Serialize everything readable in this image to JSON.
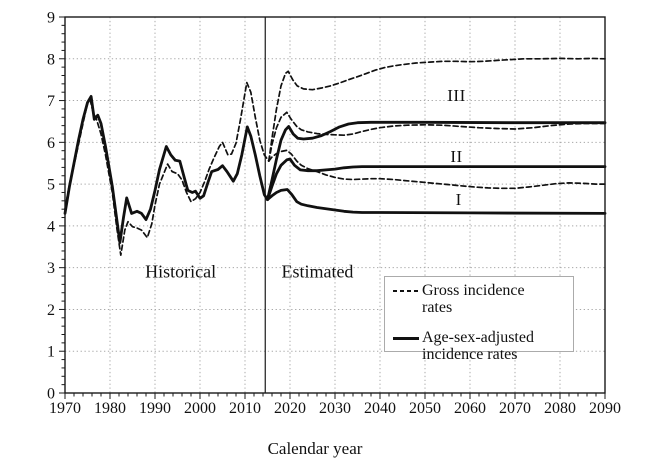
{
  "colors": {
    "line": "#111111",
    "grid": "#a8a8a8",
    "frame": "#1a1a1a",
    "background": "#ffffff",
    "legend_border": "#ababab"
  },
  "annotations": {
    "divider_year": 2014.5,
    "region_labels": [
      {
        "text": "Historical",
        "year": 1995.7,
        "value": 2.9
      },
      {
        "text": "Estimated",
        "year": 2026.1,
        "value": 2.9
      }
    ],
    "scenarios": [
      {
        "text": "I",
        "year": 2057.5,
        "value": 4.62
      },
      {
        "text": "II",
        "year": 2057.0,
        "value": 5.66
      },
      {
        "text": "III",
        "year": 2057.0,
        "value": 7.12
      }
    ]
  },
  "legend": {
    "items": [
      {
        "style": "dashed",
        "label": "Gross incidence rates"
      },
      {
        "style": "solid",
        "label": "Age-sex-adjusted incidence rates"
      }
    ]
  },
  "chart_data": {
    "type": "line",
    "title": "",
    "xlabel": "Calendar year",
    "ylabel": "",
    "xlim": [
      1970,
      2090
    ],
    "ylim": [
      0,
      9
    ],
    "x_major_step": 10,
    "x_minor_step": 2,
    "y_major_step": 1,
    "y_minor_step": 0.2,
    "grid": "dotted",
    "x_ticks": [
      "1970",
      "1980",
      "1990",
      "2000",
      "2010",
      "2020",
      "2030",
      "2040",
      "2050",
      "2060",
      "2070",
      "2080",
      "2090"
    ],
    "y_ticks": [
      "0",
      "1",
      "2",
      "3",
      "4",
      "5",
      "6",
      "7",
      "8",
      "9"
    ],
    "series": [
      {
        "id": "gross-historical",
        "name": "Gross incidence rates (historical)",
        "style": "dashed",
        "points": [
          [
            1970,
            4.4
          ],
          [
            1971,
            5.0
          ],
          [
            1972,
            5.45
          ],
          [
            1973,
            5.95
          ],
          [
            1974,
            6.45
          ],
          [
            1975,
            6.95
          ],
          [
            1975.5,
            7.05
          ],
          [
            1976.3,
            6.7
          ],
          [
            1977,
            6.55
          ],
          [
            1978,
            6.2
          ],
          [
            1979,
            5.7
          ],
          [
            1980.5,
            4.8
          ],
          [
            1981.5,
            3.95
          ],
          [
            1982.4,
            3.3
          ],
          [
            1983.3,
            3.9
          ],
          [
            1984,
            4.1
          ],
          [
            1985,
            3.98
          ],
          [
            1986,
            3.95
          ],
          [
            1987,
            3.9
          ],
          [
            1988.3,
            3.72
          ],
          [
            1989.3,
            4.05
          ],
          [
            1990,
            4.5
          ],
          [
            1991,
            5.0
          ],
          [
            1992.8,
            5.48
          ],
          [
            1993.8,
            5.3
          ],
          [
            1995,
            5.25
          ],
          [
            1996,
            5.1
          ],
          [
            1997,
            4.8
          ],
          [
            1998,
            4.58
          ],
          [
            1999,
            4.65
          ],
          [
            2000,
            4.8
          ],
          [
            2001,
            5.05
          ],
          [
            2002,
            5.35
          ],
          [
            2003,
            5.6
          ],
          [
            2004.3,
            5.9
          ],
          [
            2005,
            6.0
          ],
          [
            2006.2,
            5.7
          ],
          [
            2007,
            5.72
          ],
          [
            2008,
            5.98
          ],
          [
            2009,
            6.55
          ],
          [
            2010.4,
            7.43
          ],
          [
            2011.3,
            7.2
          ],
          [
            2012.3,
            6.6
          ],
          [
            2013.3,
            6.05
          ],
          [
            2014.3,
            5.7
          ],
          [
            2015.3,
            5.55
          ]
        ]
      },
      {
        "id": "gross-III",
        "name": "Gross incidence rates III",
        "style": "dashed",
        "points": [
          [
            2015.3,
            5.55
          ],
          [
            2016,
            6.1
          ],
          [
            2017,
            6.8
          ],
          [
            2018,
            7.35
          ],
          [
            2019,
            7.65
          ],
          [
            2019.6,
            7.7
          ],
          [
            2020.6,
            7.5
          ],
          [
            2021.6,
            7.35
          ],
          [
            2023,
            7.28
          ],
          [
            2025,
            7.26
          ],
          [
            2027,
            7.3
          ],
          [
            2029,
            7.35
          ],
          [
            2031,
            7.42
          ],
          [
            2033,
            7.5
          ],
          [
            2035,
            7.57
          ],
          [
            2037,
            7.65
          ],
          [
            2039,
            7.73
          ],
          [
            2041,
            7.79
          ],
          [
            2043,
            7.83
          ],
          [
            2045,
            7.86
          ],
          [
            2048,
            7.9
          ],
          [
            2051,
            7.92
          ],
          [
            2054,
            7.94
          ],
          [
            2057,
            7.94
          ],
          [
            2060,
            7.93
          ],
          [
            2063,
            7.94
          ],
          [
            2066,
            7.96
          ],
          [
            2069,
            7.98
          ],
          [
            2072,
            8.0
          ],
          [
            2076,
            8.0
          ],
          [
            2080,
            8.01
          ],
          [
            2084,
            8.0
          ],
          [
            2087,
            8.01
          ],
          [
            2090,
            8.0
          ]
        ]
      },
      {
        "id": "gross-II",
        "name": "Gross incidence rates II",
        "style": "dashed",
        "points": [
          [
            2015.3,
            5.55
          ],
          [
            2016,
            5.95
          ],
          [
            2017,
            6.35
          ],
          [
            2018,
            6.6
          ],
          [
            2019.3,
            6.72
          ],
          [
            2020.3,
            6.55
          ],
          [
            2021.5,
            6.38
          ],
          [
            2022.5,
            6.3
          ],
          [
            2024,
            6.25
          ],
          [
            2026,
            6.21
          ],
          [
            2028,
            6.19
          ],
          [
            2030,
            6.18
          ],
          [
            2032,
            6.17
          ],
          [
            2034,
            6.2
          ],
          [
            2036,
            6.26
          ],
          [
            2038,
            6.31
          ],
          [
            2040,
            6.35
          ],
          [
            2043,
            6.39
          ],
          [
            2046,
            6.41
          ],
          [
            2050,
            6.42
          ],
          [
            2054,
            6.41
          ],
          [
            2058,
            6.38
          ],
          [
            2062,
            6.35
          ],
          [
            2066,
            6.33
          ],
          [
            2070,
            6.32
          ],
          [
            2074,
            6.35
          ],
          [
            2078,
            6.4
          ],
          [
            2082,
            6.44
          ],
          [
            2086,
            6.45
          ],
          [
            2090,
            6.45
          ]
        ]
      },
      {
        "id": "gross-I",
        "name": "Gross incidence rates I",
        "style": "dashed",
        "points": [
          [
            2015.3,
            5.55
          ],
          [
            2016,
            5.65
          ],
          [
            2017,
            5.73
          ],
          [
            2018,
            5.78
          ],
          [
            2019.3,
            5.81
          ],
          [
            2020.3,
            5.72
          ],
          [
            2021.5,
            5.55
          ],
          [
            2022.5,
            5.45
          ],
          [
            2024,
            5.37
          ],
          [
            2026,
            5.3
          ],
          [
            2028,
            5.22
          ],
          [
            2030,
            5.16
          ],
          [
            2032,
            5.12
          ],
          [
            2034,
            5.11
          ],
          [
            2036,
            5.12
          ],
          [
            2038,
            5.13
          ],
          [
            2040,
            5.13
          ],
          [
            2043,
            5.11
          ],
          [
            2046,
            5.08
          ],
          [
            2049,
            5.05
          ],
          [
            2052,
            5.02
          ],
          [
            2055,
            4.99
          ],
          [
            2058,
            4.96
          ],
          [
            2061,
            4.93
          ],
          [
            2064,
            4.91
          ],
          [
            2067,
            4.9
          ],
          [
            2070,
            4.9
          ],
          [
            2073,
            4.93
          ],
          [
            2076,
            4.97
          ],
          [
            2079,
            5.01
          ],
          [
            2082,
            5.03
          ],
          [
            2085,
            5.02
          ],
          [
            2088,
            5.0
          ],
          [
            2090,
            5.0
          ]
        ]
      },
      {
        "id": "adjusted-historical",
        "name": "Age-sex-adjusted incidence rates (historical)",
        "style": "solid",
        "points": [
          [
            1970,
            4.3
          ],
          [
            1971,
            4.95
          ],
          [
            1972,
            5.5
          ],
          [
            1973,
            6.05
          ],
          [
            1974,
            6.55
          ],
          [
            1975,
            6.95
          ],
          [
            1975.8,
            7.1
          ],
          [
            1976.5,
            6.55
          ],
          [
            1977.3,
            6.65
          ],
          [
            1978,
            6.45
          ],
          [
            1979,
            5.9
          ],
          [
            1980.5,
            4.95
          ],
          [
            1981.5,
            4.15
          ],
          [
            1982.2,
            3.6
          ],
          [
            1983,
            4.2
          ],
          [
            1983.7,
            4.67
          ],
          [
            1984.8,
            4.3
          ],
          [
            1986,
            4.35
          ],
          [
            1987,
            4.3
          ],
          [
            1988,
            4.15
          ],
          [
            1989,
            4.4
          ],
          [
            1990,
            4.85
          ],
          [
            1991,
            5.35
          ],
          [
            1992.5,
            5.9
          ],
          [
            1993.5,
            5.7
          ],
          [
            1994.5,
            5.57
          ],
          [
            1995.5,
            5.55
          ],
          [
            1996.5,
            5.15
          ],
          [
            1997.3,
            4.85
          ],
          [
            1998.3,
            4.8
          ],
          [
            1999,
            4.83
          ],
          [
            2000,
            4.66
          ],
          [
            2000.8,
            4.72
          ],
          [
            2001.8,
            5.05
          ],
          [
            2002.6,
            5.3
          ],
          [
            2004,
            5.35
          ],
          [
            2005,
            5.44
          ],
          [
            2006,
            5.3
          ],
          [
            2007.4,
            5.07
          ],
          [
            2008.3,
            5.25
          ],
          [
            2009.3,
            5.7
          ],
          [
            2010.5,
            6.37
          ],
          [
            2011.3,
            6.15
          ],
          [
            2012.3,
            5.7
          ],
          [
            2013.3,
            5.2
          ],
          [
            2014.3,
            4.75
          ],
          [
            2015,
            4.63
          ]
        ]
      },
      {
        "id": "adjusted-III",
        "name": "Age-sex-adjusted incidence rates III",
        "style": "solid",
        "points": [
          [
            2015,
            4.63
          ],
          [
            2016,
            5.1
          ],
          [
            2017,
            5.6
          ],
          [
            2018,
            6.05
          ],
          [
            2019,
            6.3
          ],
          [
            2019.7,
            6.38
          ],
          [
            2020.7,
            6.2
          ],
          [
            2021.7,
            6.1
          ],
          [
            2023,
            6.08
          ],
          [
            2025,
            6.1
          ],
          [
            2027,
            6.16
          ],
          [
            2029,
            6.26
          ],
          [
            2031,
            6.37
          ],
          [
            2033,
            6.44
          ],
          [
            2035,
            6.47
          ],
          [
            2038,
            6.48
          ],
          [
            2050,
            6.48
          ],
          [
            2070,
            6.47
          ],
          [
            2090,
            6.47
          ]
        ]
      },
      {
        "id": "adjusted-II",
        "name": "Age-sex-adjusted incidence rates II",
        "style": "solid",
        "points": [
          [
            2015,
            4.63
          ],
          [
            2016,
            4.95
          ],
          [
            2017,
            5.25
          ],
          [
            2018,
            5.45
          ],
          [
            2019.3,
            5.58
          ],
          [
            2020,
            5.6
          ],
          [
            2021,
            5.45
          ],
          [
            2022.3,
            5.34
          ],
          [
            2024,
            5.32
          ],
          [
            2026,
            5.32
          ],
          [
            2028,
            5.34
          ],
          [
            2030,
            5.36
          ],
          [
            2032,
            5.39
          ],
          [
            2034,
            5.41
          ],
          [
            2036,
            5.42
          ],
          [
            2040,
            5.42
          ],
          [
            2060,
            5.42
          ],
          [
            2090,
            5.42
          ]
        ]
      },
      {
        "id": "adjusted-I",
        "name": "Age-sex-adjusted incidence rates I",
        "style": "solid",
        "points": [
          [
            2015,
            4.63
          ],
          [
            2016,
            4.72
          ],
          [
            2017,
            4.8
          ],
          [
            2018,
            4.85
          ],
          [
            2019.4,
            4.87
          ],
          [
            2020.4,
            4.75
          ],
          [
            2021.5,
            4.58
          ],
          [
            2022.5,
            4.52
          ],
          [
            2024,
            4.48
          ],
          [
            2026,
            4.44
          ],
          [
            2028,
            4.41
          ],
          [
            2030,
            4.38
          ],
          [
            2032,
            4.35
          ],
          [
            2034,
            4.33
          ],
          [
            2036,
            4.32
          ],
          [
            2040,
            4.32
          ],
          [
            2060,
            4.31
          ],
          [
            2090,
            4.3
          ]
        ]
      }
    ]
  }
}
